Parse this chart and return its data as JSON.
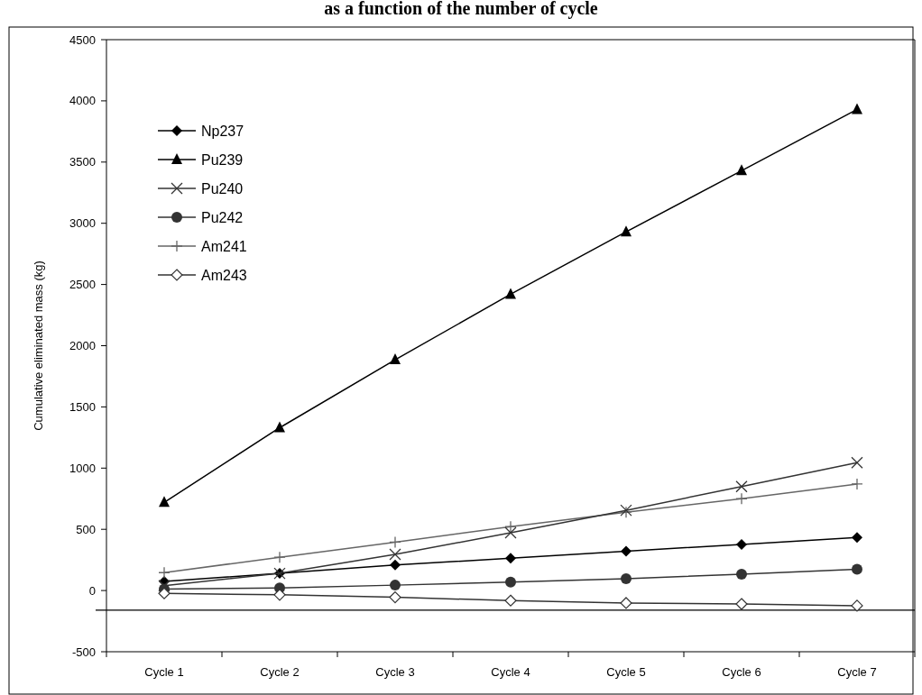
{
  "chart_data": {
    "type": "line",
    "title": "as a function of the number of cycle",
    "ylabel": "Cumulative eliminated mass (kg)",
    "categories": [
      "Cycle 1",
      "Cycle 2",
      "Cycle 3",
      "Cycle 4",
      "Cycle 5",
      "Cycle 6",
      "Cycle 7"
    ],
    "series": [
      {
        "name": "Np237",
        "color": "#000000",
        "marker": "diamond",
        "values": [
          75,
          140,
          208,
          264,
          321,
          377,
          434
        ]
      },
      {
        "name": "Pu239",
        "color": "#000000",
        "marker": "triangle",
        "values": [
          720,
          1330,
          1885,
          2420,
          2930,
          3430,
          3930
        ]
      },
      {
        "name": "Pu240",
        "color": "#333333",
        "marker": "cross",
        "values": [
          40,
          140,
          295,
          472,
          655,
          850,
          1045
        ]
      },
      {
        "name": "Pu242",
        "color": "#333333",
        "marker": "circle",
        "values": [
          12,
          21,
          44,
          68,
          97,
          134,
          174
        ]
      },
      {
        "name": "Am241",
        "color": "#666666",
        "marker": "plus",
        "values": [
          146,
          272,
          395,
          522,
          640,
          750,
          870
        ]
      },
      {
        "name": "Am243",
        "color": "#333333",
        "marker": "diamond_open",
        "values": [
          -23,
          -35,
          -55,
          -82,
          -102,
          -110,
          -124
        ]
      }
    ],
    "ylim": [
      -500,
      4500
    ],
    "yticks": [
      -500,
      0,
      500,
      1000,
      1500,
      2000,
      2500,
      3000,
      3500,
      4000,
      4500
    ],
    "ref_lines": [
      {
        "axis": "y",
        "value": -160,
        "color": "#000000"
      }
    ],
    "legend": "top left",
    "grid": false
  }
}
